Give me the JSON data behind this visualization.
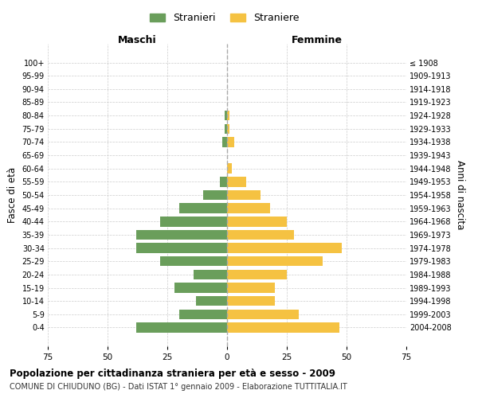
{
  "age_groups": [
    "0-4",
    "5-9",
    "10-14",
    "15-19",
    "20-24",
    "25-29",
    "30-34",
    "35-39",
    "40-44",
    "45-49",
    "50-54",
    "55-59",
    "60-64",
    "65-69",
    "70-74",
    "75-79",
    "80-84",
    "85-89",
    "90-94",
    "95-99",
    "100+"
  ],
  "birth_years": [
    "2004-2008",
    "1999-2003",
    "1994-1998",
    "1989-1993",
    "1984-1988",
    "1979-1983",
    "1974-1978",
    "1969-1973",
    "1964-1968",
    "1959-1963",
    "1954-1958",
    "1949-1953",
    "1944-1948",
    "1939-1943",
    "1934-1938",
    "1929-1933",
    "1924-1928",
    "1919-1923",
    "1914-1918",
    "1909-1913",
    "≤ 1908"
  ],
  "maschi": [
    38,
    20,
    13,
    22,
    14,
    28,
    38,
    38,
    28,
    20,
    10,
    3,
    0,
    0,
    2,
    1,
    1,
    0,
    0,
    0,
    0
  ],
  "femmine": [
    47,
    30,
    20,
    20,
    25,
    40,
    48,
    28,
    25,
    18,
    14,
    8,
    2,
    0,
    3,
    1,
    1,
    0,
    0,
    0,
    0
  ],
  "color_maschi": "#6a9e5b",
  "color_femmine": "#f5c242",
  "title_main": "Popolazione per cittadinanza straniera per età e sesso - 2009",
  "title_sub": "COMUNE DI CHIUDUNO (BG) - Dati ISTAT 1° gennaio 2009 - Elaborazione TUTTITALIA.IT",
  "legend_maschi": "Stranieri",
  "legend_femmine": "Straniere",
  "xlabel_left": "Maschi",
  "xlabel_right": "Femmine",
  "ylabel_left": "Fasce di età",
  "ylabel_right": "Anni di nascita",
  "xlim": 75,
  "background_color": "#ffffff",
  "grid_color": "#cccccc"
}
